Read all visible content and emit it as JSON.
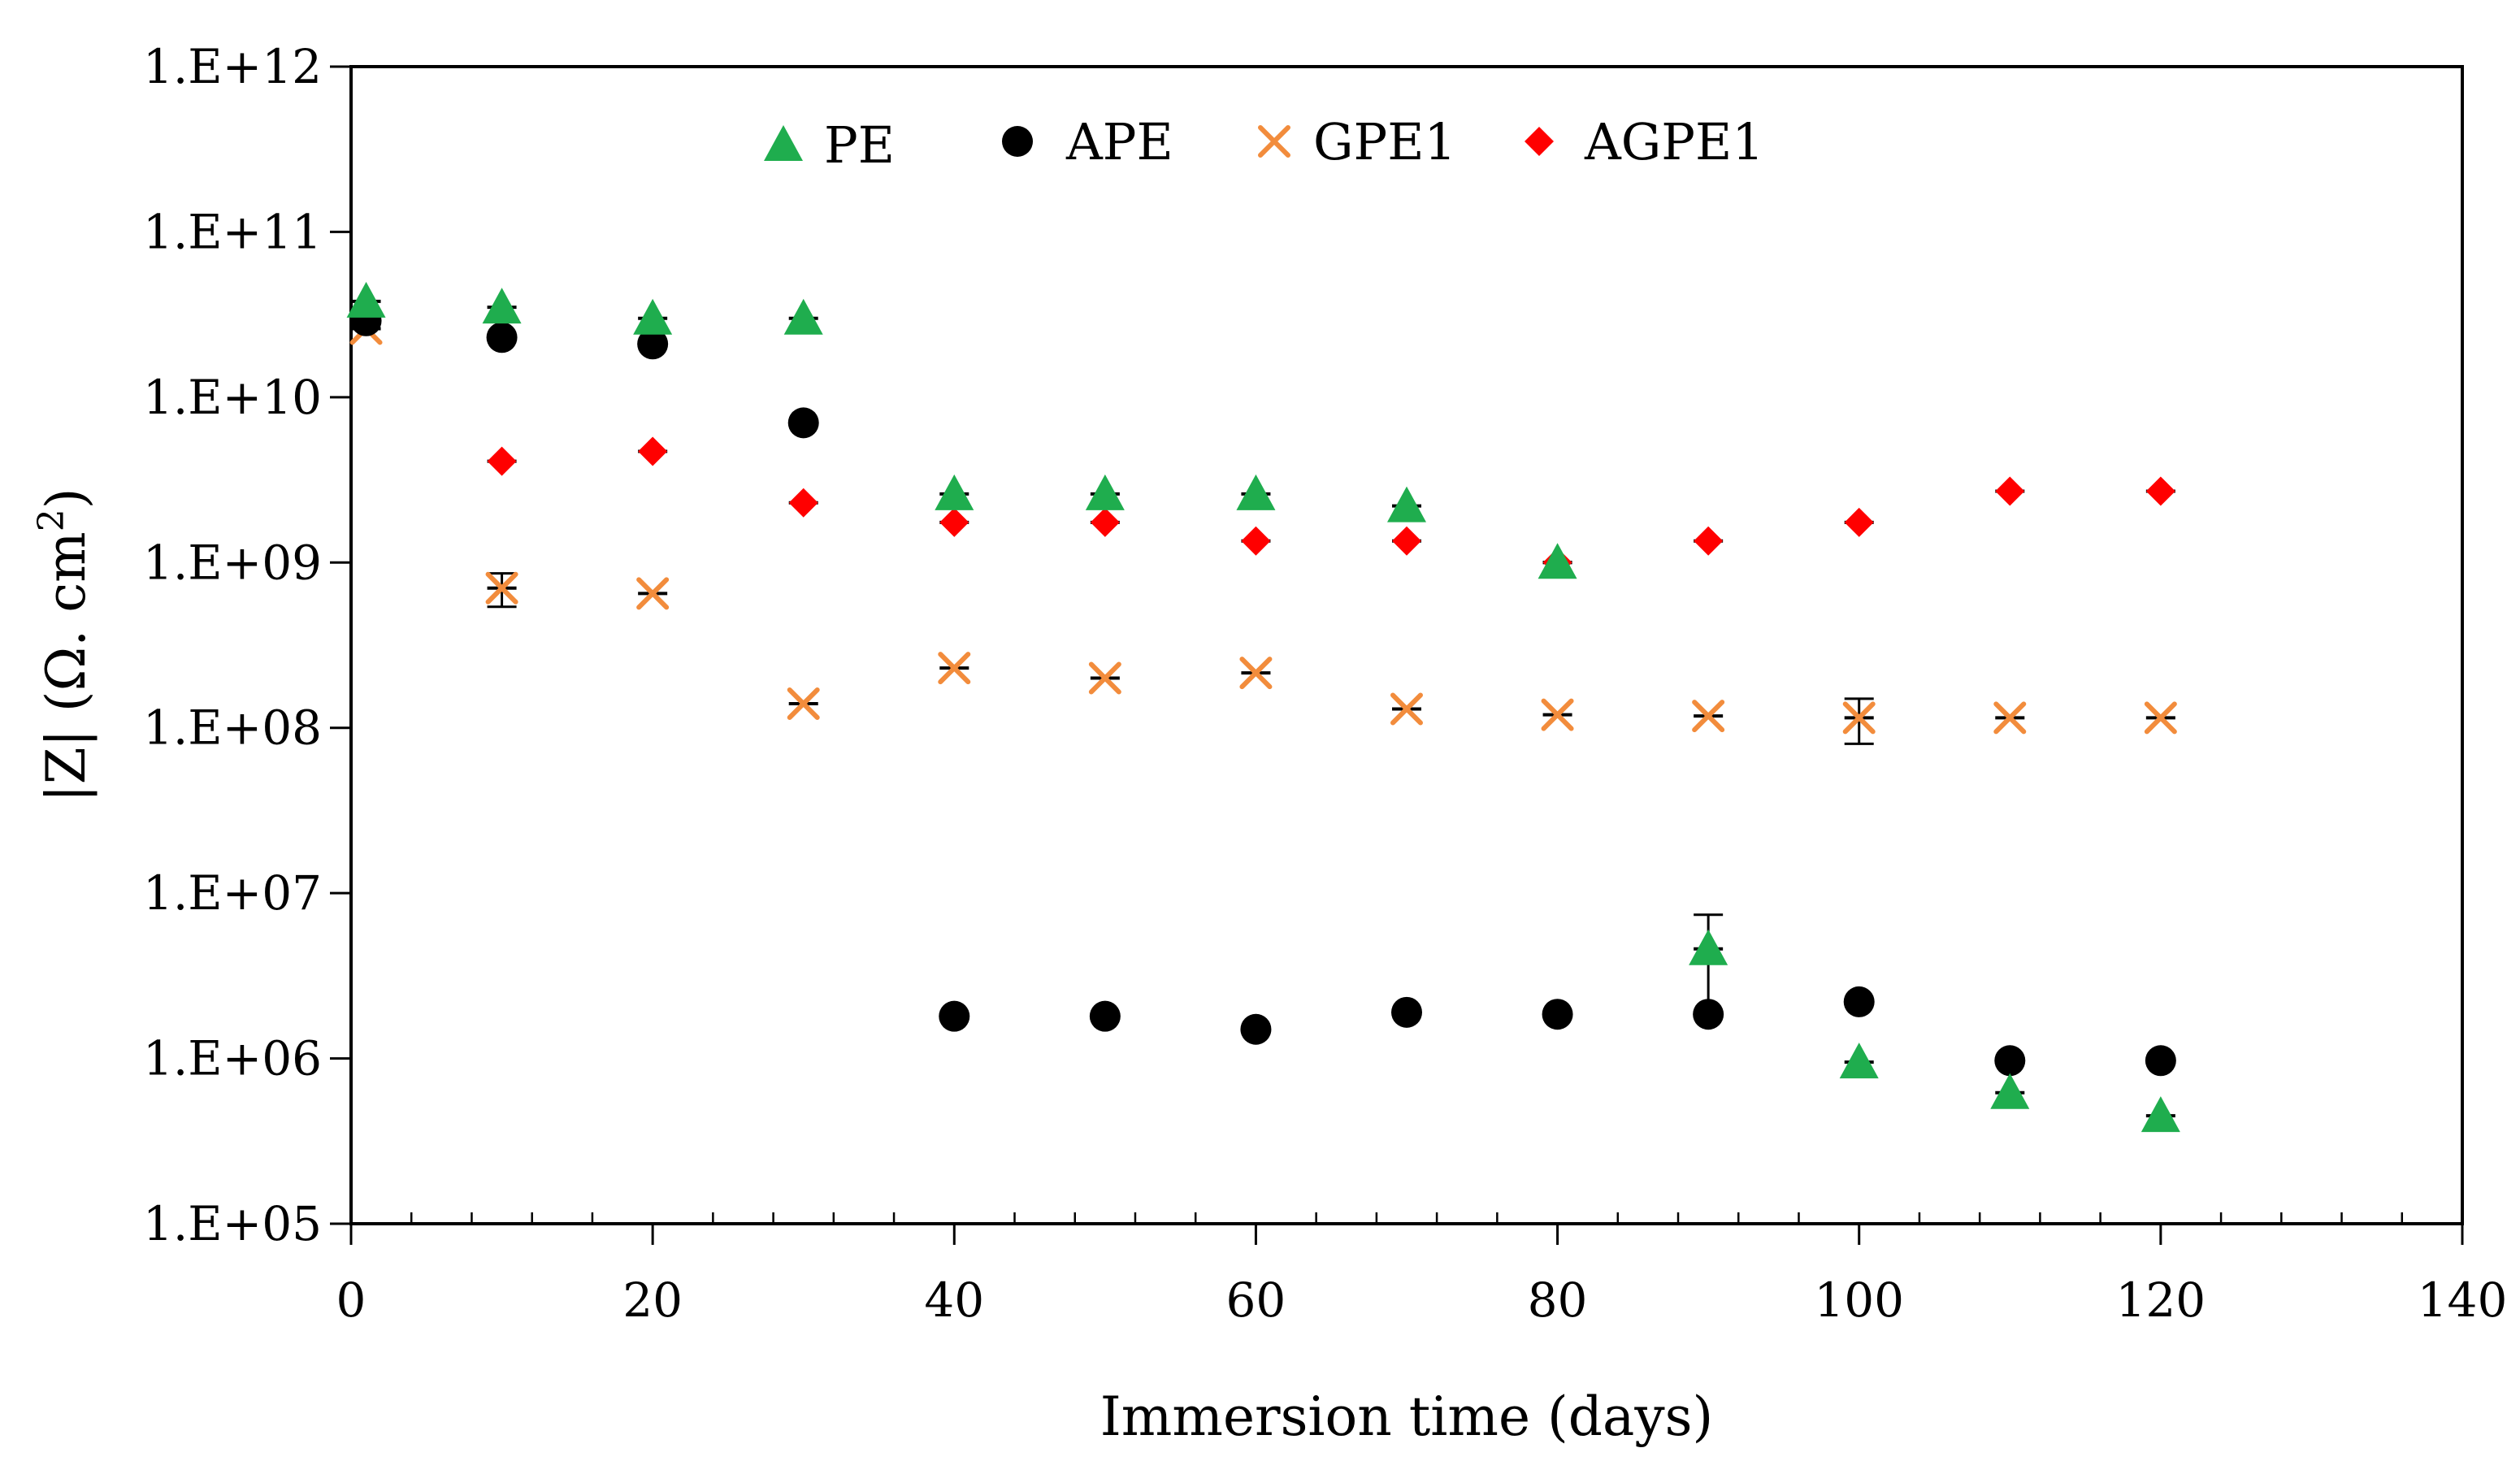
{
  "chart_data": {
    "type": "scatter",
    "title": "",
    "xlabel": "Immersion time (days)",
    "ylabel": "|Z| (Ω. cm",
    "ylabel_superscript": "2",
    "ylabel_close": ")",
    "xlim": [
      0,
      140
    ],
    "ylim": [
      100000,
      1000000000000
    ],
    "yscale": "log",
    "x_ticks": [
      0,
      20,
      40,
      60,
      80,
      100,
      120,
      140
    ],
    "x_tick_labels": [
      "0",
      "20",
      "40",
      "60",
      "80",
      "100",
      "120",
      "140"
    ],
    "y_ticks": [
      100000,
      1000000,
      10000000,
      100000000,
      1000000000,
      10000000000,
      100000000000,
      1000000000000
    ],
    "y_tick_labels": [
      "1.E+05",
      "1.E+06",
      "1.E+07",
      "1.E+08",
      "1.E+09",
      "1.E+10",
      "1.E+11",
      "1.E+12"
    ],
    "legend_position": "top",
    "grid": false,
    "series": [
      {
        "name": "PE",
        "marker": "triangle",
        "color": "#1fad4e",
        "x": [
          1,
          10,
          20,
          30,
          40,
          50,
          60,
          70,
          80,
          90,
          100,
          110,
          120
        ],
        "y": [
          38000000000,
          35000000000,
          30000000000,
          30000000000,
          2600000000,
          2600000000,
          2600000000,
          2200000000,
          1000000000,
          4600000,
          950000,
          620000,
          450000
        ],
        "err": [
          0,
          0,
          0,
          0,
          0,
          0,
          0,
          0,
          0,
          2800000,
          0,
          0,
          0
        ]
      },
      {
        "name": "APE",
        "marker": "circle",
        "color": "#000000",
        "x": [
          1,
          10,
          20,
          30,
          40,
          50,
          60,
          70,
          80,
          90,
          100,
          110,
          120
        ],
        "y": [
          29000000000,
          23000000000,
          21000000000,
          7000000000,
          1800000,
          1800000,
          1500000,
          1900000,
          1850000,
          1850000,
          2200000,
          970000,
          970000
        ],
        "err": [
          0,
          0,
          0,
          0,
          0,
          0,
          0,
          0,
          0,
          0,
          0,
          0,
          0
        ]
      },
      {
        "name": "GPE1",
        "marker": "x",
        "color": "#f28c3c",
        "x": [
          1,
          10,
          20,
          30,
          40,
          50,
          60,
          70,
          80,
          90,
          100,
          110,
          120
        ],
        "y": [
          26000000000,
          700000000,
          650000000,
          140000000,
          230000000,
          200000000,
          215000000,
          130000000,
          120000000,
          118000000,
          115000000,
          115000000,
          115000000
        ],
        "err": [
          0,
          160000000,
          0,
          0,
          0,
          0,
          0,
          0,
          0,
          0,
          35000000,
          0,
          0
        ]
      },
      {
        "name": "AGPE1",
        "marker": "diamond",
        "color": "#ff0000",
        "x": [
          10,
          20,
          30,
          40,
          50,
          60,
          70,
          80,
          90,
          100,
          110,
          120
        ],
        "y": [
          4100000000,
          4700000000,
          2300000000,
          1750000000,
          1750000000,
          1350000000,
          1350000000,
          1000000000,
          1350000000,
          1750000000,
          2700000000,
          2700000000
        ],
        "err": [
          0,
          0,
          0,
          0,
          0,
          0,
          0,
          0,
          0,
          0,
          0,
          0
        ]
      }
    ]
  }
}
